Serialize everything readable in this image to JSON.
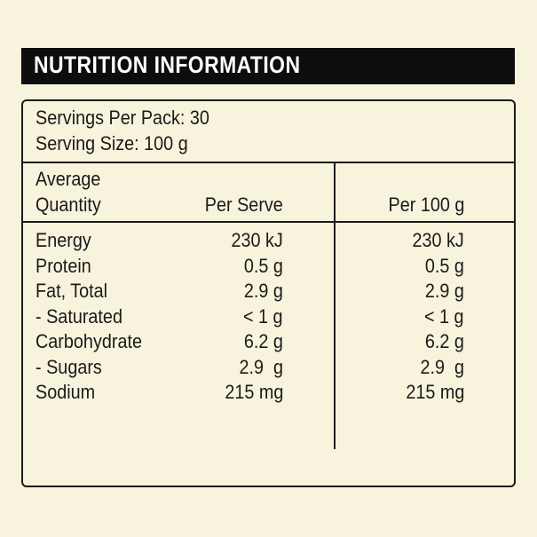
{
  "header": {
    "title": "NUTRITION INFORMATION"
  },
  "servings": [
    "Servings Per Pack: 30",
    "Serving Size: 100 g"
  ],
  "table": {
    "columns": [
      "Average\nQuantity",
      "Per Serve",
      "Per 100 g"
    ],
    "rows": [
      [
        "Energy",
        "230 kJ",
        "230 kJ"
      ],
      [
        "Protein",
        "0.5 g",
        "0.5 g"
      ],
      [
        "Fat, Total",
        "2.9 g",
        "2.9 g"
      ],
      [
        "- Saturated",
        "< 1 g",
        "< 1 g"
      ],
      [
        "Carbohydrate",
        "6.2 g",
        "6.2 g"
      ],
      [
        "- Sugars",
        "2.9  g",
        "2.9  g"
      ],
      [
        "Sodium",
        "215 mg",
        "215 mg"
      ]
    ]
  }
}
